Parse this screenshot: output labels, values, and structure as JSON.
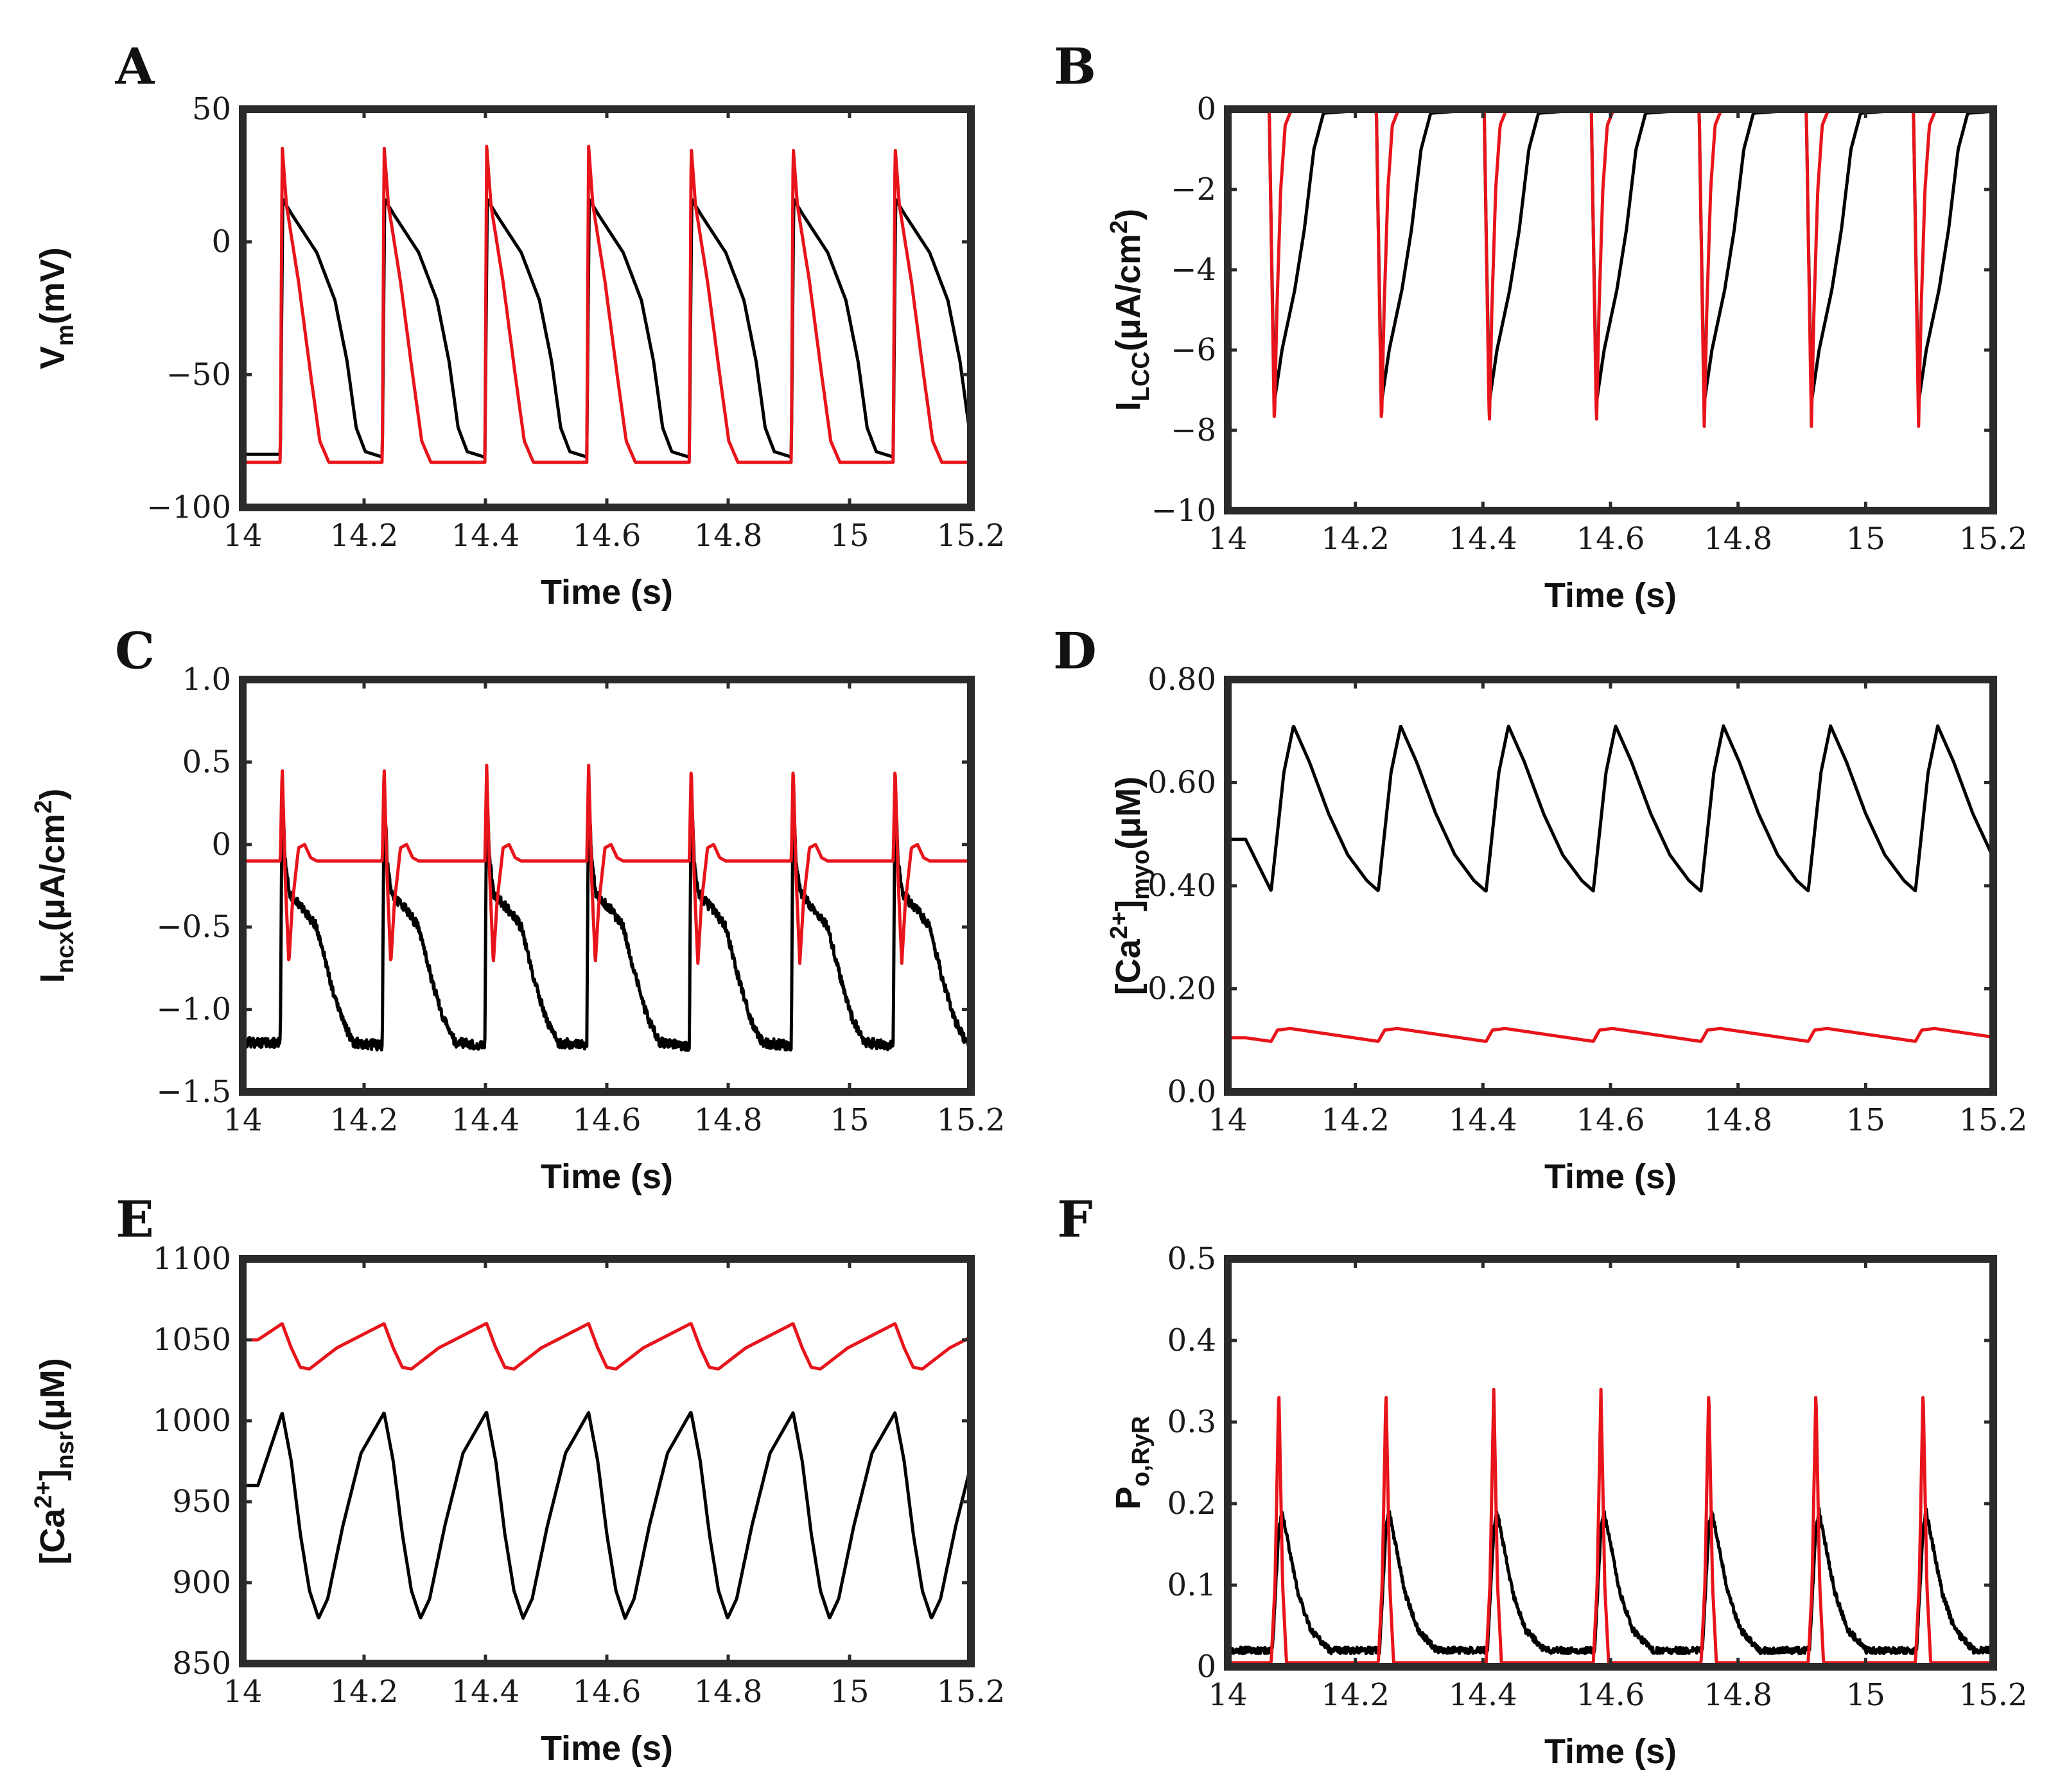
{
  "colors": {
    "control": "#000000",
    "model": "#e8141b"
  },
  "chart_data": [
    {
      "id": "A",
      "type": "line",
      "panel_label": "A",
      "ylabel_main": "V",
      "ylabel_sub": "m",
      "ylabel_tail": "(mV)",
      "xlabel": "Time (s)",
      "xlim": [
        14,
        15.2
      ],
      "ylim": [
        -100,
        50
      ],
      "xticks": [
        14,
        14.2,
        14.4,
        14.6,
        14.8,
        15,
        15.2
      ],
      "xtick_labels": [
        "14",
        "14.2",
        "14.4",
        "14.6",
        "14.8",
        "15",
        "15.2"
      ],
      "yticks": [
        -100,
        -50,
        0,
        50
      ],
      "ytick_labels": [
        "−100",
        "−50",
        "0",
        "50"
      ],
      "beats": [
        14.062,
        14.23,
        14.399,
        14.567,
        14.736,
        14.904,
        15.072
      ],
      "series": [
        {
          "name": "black",
          "color": "#000000",
          "points": [
            [
              -0.04,
              -80
            ],
            [
              0,
              -80
            ],
            [
              0.004,
              16
            ],
            [
              0.02,
              10
            ],
            [
              0.06,
              -4
            ],
            [
              0.09,
              -22
            ],
            [
              0.11,
              -45
            ],
            [
              0.125,
              -70
            ],
            [
              0.14,
              -79
            ],
            [
              0.168,
              -81
            ]
          ]
        },
        {
          "name": "red",
          "color": "#e8141b",
          "points": [
            [
              -0.04,
              -83
            ],
            [
              0,
              -83
            ],
            [
              0.003,
              36
            ],
            [
              0.01,
              14
            ],
            [
              0.03,
              -15
            ],
            [
              0.05,
              -50
            ],
            [
              0.065,
              -75
            ],
            [
              0.08,
              -83
            ],
            [
              0.168,
              -83
            ]
          ]
        }
      ]
    },
    {
      "id": "B",
      "type": "line",
      "panel_label": "B",
      "ylabel_main": "I",
      "ylabel_sub": "LCC",
      "ylabel_tail": "(μA/cm",
      "ylabel_sup": "2",
      "ylabel_end": ")",
      "xlabel": "Time (s)",
      "xlim": [
        14,
        15.2
      ],
      "ylim": [
        -10,
        0
      ],
      "xticks": [
        14,
        14.2,
        14.4,
        14.6,
        14.8,
        15,
        15.2
      ],
      "xtick_labels": [
        "14",
        "14.2",
        "14.4",
        "14.6",
        "14.8",
        "15",
        "15.2"
      ],
      "yticks": [
        -10,
        -8,
        -6,
        -4,
        -2,
        0
      ],
      "ytick_labels": [
        "−10",
        "−8",
        "−6",
        "−4",
        "−2",
        "0"
      ],
      "beats": [
        14.065,
        14.233,
        14.402,
        14.57,
        14.739,
        14.907,
        15.075
      ],
      "series": [
        {
          "name": "black",
          "color": "#000000",
          "points": [
            [
              -0.04,
              0
            ],
            [
              0,
              0
            ],
            [
              0.003,
              -3
            ],
            [
              0.008,
              -7.3
            ],
            [
              0.02,
              -6
            ],
            [
              0.04,
              -4.5
            ],
            [
              0.055,
              -3
            ],
            [
              0.07,
              -1
            ],
            [
              0.085,
              -0.1
            ],
            [
              0.168,
              0
            ]
          ]
        },
        {
          "name": "red",
          "color": "#e8141b",
          "points": [
            [
              -0.04,
              0
            ],
            [
              0,
              0
            ],
            [
              0.004,
              -4
            ],
            [
              0.008,
              -7.9
            ],
            [
              0.012,
              -5
            ],
            [
              0.018,
              -2
            ],
            [
              0.025,
              -0.4
            ],
            [
              0.035,
              0
            ],
            [
              0.168,
              0
            ]
          ]
        }
      ]
    },
    {
      "id": "C",
      "type": "line",
      "panel_label": "C",
      "ylabel_main": "I",
      "ylabel_sub": "ncx",
      "ylabel_tail": "(μA/cm",
      "ylabel_sup": "2",
      "ylabel_end": ")",
      "xlabel": "Time (s)",
      "xlim": [
        14,
        15.2
      ],
      "ylim": [
        -1.5,
        1.0
      ],
      "xticks": [
        14,
        14.2,
        14.4,
        14.6,
        14.8,
        15,
        15.2
      ],
      "xtick_labels": [
        "14",
        "14.2",
        "14.4",
        "14.6",
        "14.8",
        "15",
        "15.2"
      ],
      "yticks": [
        -1.5,
        -1.0,
        -0.5,
        0,
        0.5,
        1.0
      ],
      "ytick_labels": [
        "−1.5",
        "−1.0",
        "−0.5",
        "0",
        "0.5",
        "1.0"
      ],
      "beats": [
        14.062,
        14.23,
        14.399,
        14.567,
        14.736,
        14.904,
        15.072
      ],
      "series": [
        {
          "name": "black",
          "color": "#000000",
          "points": [
            [
              -0.04,
              -1.2
            ],
            [
              0,
              -1.2
            ],
            [
              0.003,
              0.38
            ],
            [
              0.008,
              -0.1
            ],
            [
              0.015,
              -0.3
            ],
            [
              0.04,
              -0.4
            ],
            [
              0.06,
              -0.5
            ],
            [
              0.08,
              -0.8
            ],
            [
              0.1,
              -1.05
            ],
            [
              0.12,
              -1.2
            ],
            [
              0.168,
              -1.22
            ]
          ]
        },
        {
          "name": "red",
          "color": "#e8141b",
          "points": [
            [
              -0.04,
              -0.1
            ],
            [
              0,
              -0.1
            ],
            [
              0.003,
              0.48
            ],
            [
              0.008,
              -0.2
            ],
            [
              0.014,
              -0.72
            ],
            [
              0.02,
              -0.35
            ],
            [
              0.03,
              -0.02
            ],
            [
              0.04,
              0.0
            ],
            [
              0.05,
              -0.08
            ],
            [
              0.06,
              -0.1
            ],
            [
              0.168,
              -0.1
            ]
          ]
        }
      ]
    },
    {
      "id": "D",
      "type": "line",
      "panel_label": "D",
      "ylabel_pre": "[Ca",
      "ylabel_sup": "2+",
      "ylabel_mid": "]",
      "ylabel_sub": "myo",
      "ylabel_tail": "(μM)",
      "xlabel": "Time (s)",
      "xlim": [
        14,
        15.2
      ],
      "ylim": [
        0.0,
        0.8
      ],
      "xticks": [
        14,
        14.2,
        14.4,
        14.6,
        14.8,
        15,
        15.2
      ],
      "xtick_labels": [
        "14",
        "14.2",
        "14.4",
        "14.6",
        "14.8",
        "15",
        "15.2"
      ],
      "yticks": [
        0.0,
        0.2,
        0.4,
        0.6,
        0.8
      ],
      "ytick_labels": [
        "0.0",
        "0.20",
        "0.40",
        "0.60",
        "0.80"
      ],
      "beats": [
        14.068,
        14.236,
        14.405,
        14.573,
        14.742,
        14.91,
        15.078
      ],
      "series": [
        {
          "name": "black",
          "color": "#000000",
          "points": [
            [
              -0.04,
              0.49
            ],
            [
              0,
              0.39
            ],
            [
              0.02,
              0.62
            ],
            [
              0.035,
              0.71
            ],
            [
              0.06,
              0.64
            ],
            [
              0.09,
              0.54
            ],
            [
              0.12,
              0.46
            ],
            [
              0.15,
              0.41
            ],
            [
              0.168,
              0.39
            ]
          ]
        },
        {
          "name": "red",
          "color": "#e8141b",
          "points": [
            [
              -0.04,
              0.105
            ],
            [
              0,
              0.098
            ],
            [
              0.01,
              0.12
            ],
            [
              0.03,
              0.123
            ],
            [
              0.168,
              0.098
            ]
          ]
        }
      ]
    },
    {
      "id": "E",
      "type": "line",
      "panel_label": "E",
      "ylabel_pre": "[Ca",
      "ylabel_sup": "2+",
      "ylabel_mid": "]",
      "ylabel_sub": "nsr",
      "ylabel_tail": "(μM)",
      "xlabel": "Time (s)",
      "xlim": [
        14,
        15.2
      ],
      "ylim": [
        850,
        1100
      ],
      "xticks": [
        14,
        14.2,
        14.4,
        14.6,
        14.8,
        15,
        15.2
      ],
      "xtick_labels": [
        "14",
        "14.2",
        "14.4",
        "14.6",
        "14.8",
        "15",
        "15.2"
      ],
      "yticks": [
        850,
        900,
        950,
        1000,
        1050,
        1100
      ],
      "ytick_labels": [
        "850",
        "900",
        "950",
        "1000",
        "1050",
        "1100"
      ],
      "beats": [
        14.065,
        14.233,
        14.402,
        14.57,
        14.739,
        14.907,
        15.075
      ],
      "series": [
        {
          "name": "black",
          "color": "#000000",
          "points": [
            [
              -0.04,
              960
            ],
            [
              0,
              1005
            ],
            [
              0.015,
              975
            ],
            [
              0.03,
              930
            ],
            [
              0.045,
              895
            ],
            [
              0.06,
              878
            ],
            [
              0.075,
              890
            ],
            [
              0.1,
              935
            ],
            [
              0.13,
              980
            ],
            [
              0.168,
              1005
            ]
          ]
        },
        {
          "name": "red",
          "color": "#e8141b",
          "points": [
            [
              -0.04,
              1050
            ],
            [
              0,
              1060
            ],
            [
              0.015,
              1045
            ],
            [
              0.03,
              1033
            ],
            [
              0.045,
              1032
            ],
            [
              0.09,
              1045
            ],
            [
              0.168,
              1060
            ]
          ]
        }
      ]
    },
    {
      "id": "F",
      "type": "line",
      "panel_label": "F",
      "ylabel_main": "P",
      "ylabel_sub": "o,RyR",
      "xlabel": "Time (s)",
      "xlim": [
        14,
        15.2
      ],
      "ylim": [
        0,
        0.5
      ],
      "xticks": [
        14,
        14.2,
        14.4,
        14.6,
        14.8,
        15,
        15.2
      ],
      "xtick_labels": [
        "14",
        "14.2",
        "14.4",
        "14.6",
        "14.8",
        "15",
        "15.2"
      ],
      "yticks": [
        0,
        0.1,
        0.2,
        0.3,
        0.4,
        0.5
      ],
      "ytick_labels": [
        "0",
        "0.1",
        "0.2",
        "0.3",
        "0.4",
        "0.5"
      ],
      "beats": [
        14.08,
        14.248,
        14.417,
        14.585,
        14.754,
        14.922,
        15.09
      ],
      "series": [
        {
          "name": "black",
          "color": "#000000",
          "points": [
            [
              -0.06,
              0.02
            ],
            [
              -0.01,
              0.02
            ],
            [
              0,
              0.17
            ],
            [
              0.005,
              0.19
            ],
            [
              0.015,
              0.15
            ],
            [
              0.03,
              0.09
            ],
            [
              0.05,
              0.045
            ],
            [
              0.08,
              0.02
            ],
            [
              0.108,
              0.02
            ]
          ]
        },
        {
          "name": "red",
          "color": "#e8141b",
          "points": [
            [
              -0.06,
              0.005
            ],
            [
              -0.012,
              0.005
            ],
            [
              -0.006,
              0.1
            ],
            [
              0,
              0.34
            ],
            [
              0.006,
              0.1
            ],
            [
              0.012,
              0.005
            ],
            [
              0.108,
              0.005
            ]
          ]
        }
      ]
    }
  ]
}
